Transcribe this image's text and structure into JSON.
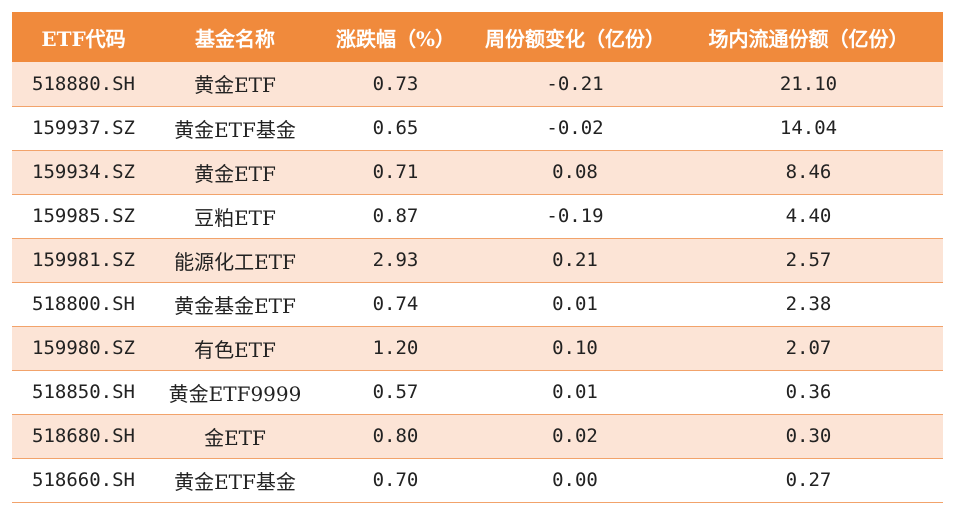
{
  "table": {
    "headers": [
      "ETF代码",
      "基金名称",
      "涨跌幅（%）",
      "周份额变化（亿份）",
      "场内流通份额（亿份）"
    ],
    "rows": [
      [
        "518880.SH",
        "黄金ETF",
        "0.73",
        "-0.21",
        "21.10"
      ],
      [
        "159937.SZ",
        "黄金ETF基金",
        "0.65",
        "-0.02",
        "14.04"
      ],
      [
        "159934.SZ",
        "黄金ETF",
        "0.71",
        "0.08",
        "8.46"
      ],
      [
        "159985.SZ",
        "豆粕ETF",
        "0.87",
        "-0.19",
        "4.40"
      ],
      [
        "159981.SZ",
        "能源化工ETF",
        "2.93",
        "0.21",
        "2.57"
      ],
      [
        "518800.SH",
        "黄金基金ETF",
        "0.74",
        "0.01",
        "2.38"
      ],
      [
        "159980.SZ",
        "有色ETF",
        "1.20",
        "0.10",
        "2.07"
      ],
      [
        "518850.SH",
        "黄金ETF9999",
        "0.57",
        "0.01",
        "0.36"
      ],
      [
        "518680.SH",
        "金ETF",
        "0.80",
        "0.02",
        "0.30"
      ],
      [
        "518660.SH",
        "黄金ETF基金",
        "0.70",
        "0.00",
        "0.27"
      ]
    ]
  },
  "colors": {
    "header_bg": "#f08a3c",
    "header_text": "#ffffff",
    "band_row": "#fce4d6",
    "plain_row": "#ffffff",
    "divider": "#f2a36b"
  }
}
